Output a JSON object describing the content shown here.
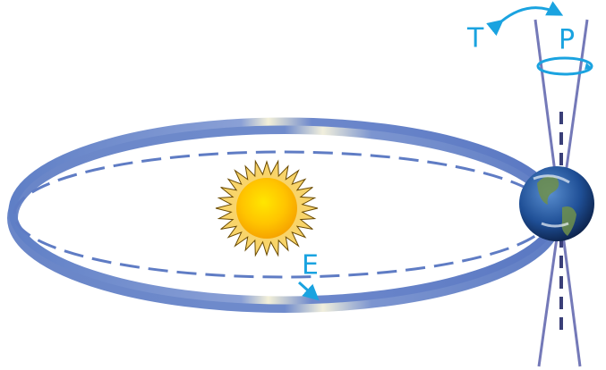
{
  "labels": {
    "tilt": "T",
    "precession": "P",
    "eccentricity": "E"
  }
}
